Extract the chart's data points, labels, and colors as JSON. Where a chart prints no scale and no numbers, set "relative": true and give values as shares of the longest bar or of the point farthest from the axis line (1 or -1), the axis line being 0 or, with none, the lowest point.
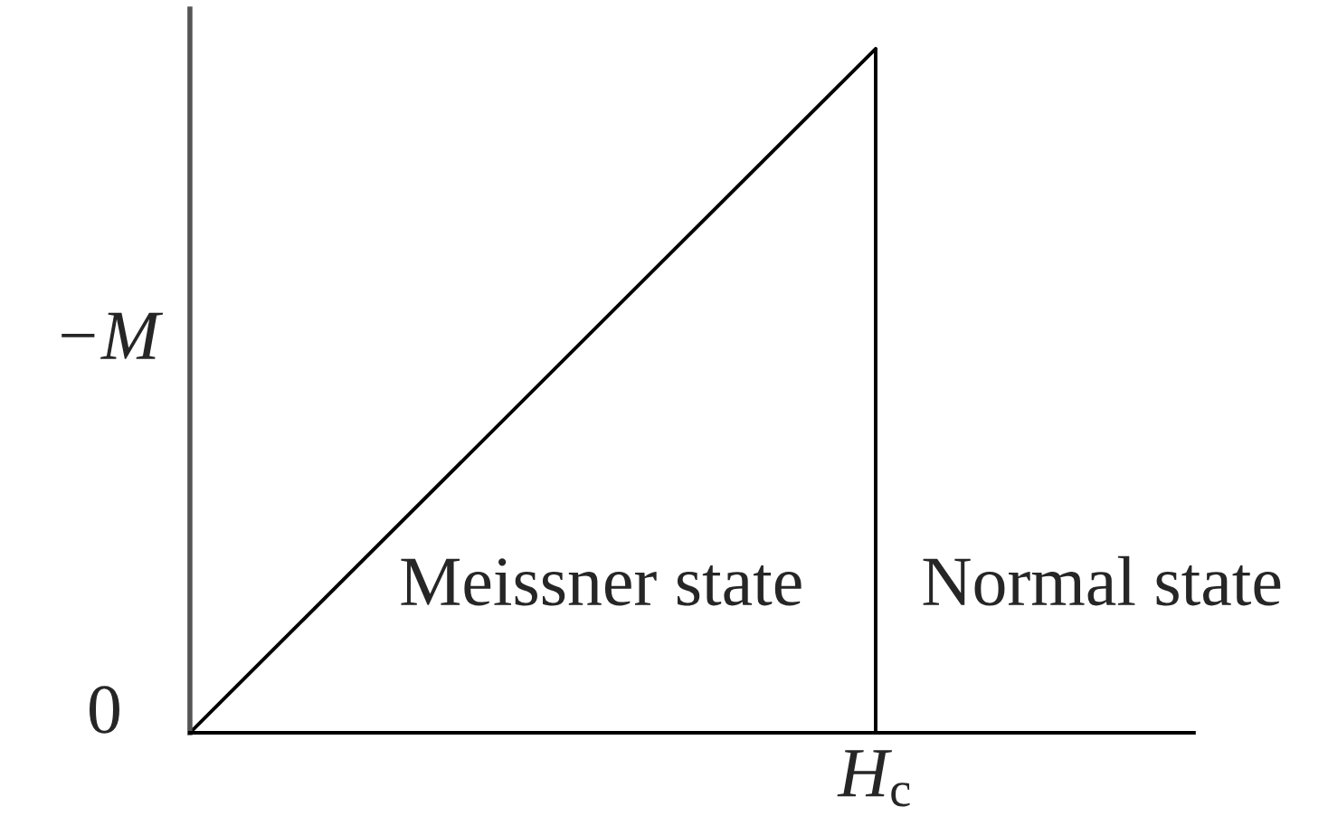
{
  "chart_data": {
    "type": "line",
    "relative": true,
    "categories": [
      null,
      null
    ],
    "series": [
      {
        "color": "#000000",
        "values": [
          0,
          1
        ]
      }
    ],
    "ylabel": "−M",
    "annotations": [
      "0",
      "H$_{c}$",
      "Meissner state",
      "Normal state"
    ]
  }
}
